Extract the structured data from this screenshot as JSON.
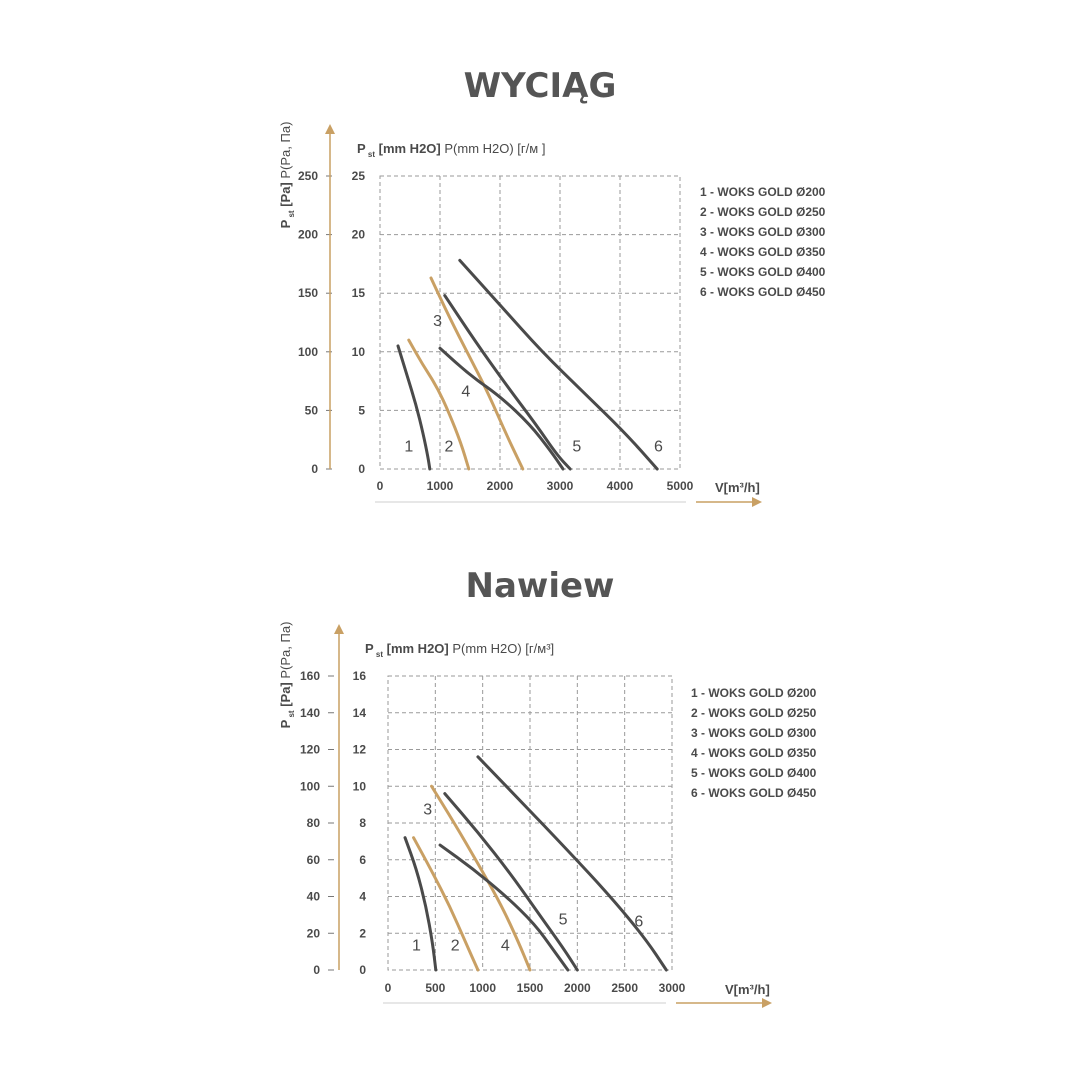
{
  "colors": {
    "dark": "#4a4a4a",
    "gold": "#c9a064",
    "arrow": "#c9a064",
    "grid": "#9a9a9a"
  },
  "chart_data": [
    {
      "type": "line",
      "title": "WYCIĄG",
      "ylabel_primary": "P",
      "ylabel_primary_sub": "st",
      "ylabel_primary_unit": "[Pa]",
      "ylabel_secondary": "P(Pa, Па)",
      "ylabel_top_prefix": "P",
      "ylabel_top_sub": "st",
      "ylabel_top_unit": "[mm H2O]",
      "ylabel_top_secondary": "P(mm H2O) [г/м ]",
      "xlabel": "V[m³/h]",
      "xlim": [
        0,
        5000
      ],
      "ylim_pa": [
        0,
        250
      ],
      "ylim_mm": [
        0,
        25
      ],
      "x_ticks": [
        "0",
        "1000",
        "2000",
        "3000",
        "4000",
        "5000"
      ],
      "y_ticks_pa": [
        "0",
        "50",
        "100",
        "150",
        "200",
        "250"
      ],
      "y_ticks_mm": [
        "0",
        "5",
        "10",
        "15",
        "20",
        "25"
      ],
      "grid": true,
      "legend_position": "right",
      "legend": [
        "1 - WOKS GOLD Ø200",
        "2 - WOKS GOLD Ø250",
        "3 - WOKS GOLD Ø300",
        "4 - WOKS GOLD Ø350",
        "5 - WOKS GOLD Ø400",
        "6 - WOKS GOLD Ø450"
      ],
      "series": [
        {
          "name": "1",
          "color": "dark",
          "x": [
            300,
            450,
            600,
            720,
            800,
            830
          ],
          "y": [
            105,
            80,
            55,
            30,
            10,
            0
          ]
        },
        {
          "name": "2",
          "color": "gold",
          "x": [
            480,
            700,
            950,
            1150,
            1350,
            1480
          ],
          "y": [
            110,
            90,
            70,
            48,
            22,
            0
          ]
        },
        {
          "name": "3",
          "color": "gold",
          "x": [
            850,
            1150,
            1500,
            1800,
            2100,
            2380
          ],
          "y": [
            163,
            130,
            95,
            65,
            30,
            0
          ]
        },
        {
          "name": "4",
          "color": "dark",
          "x": [
            1000,
            1500,
            2000,
            2500,
            2850,
            3050
          ],
          "y": [
            103,
            80,
            62,
            38,
            15,
            0
          ]
        },
        {
          "name": "5",
          "color": "dark",
          "x": [
            1080,
            1600,
            2100,
            2600,
            2950,
            3170
          ],
          "y": [
            148,
            108,
            72,
            38,
            12,
            0
          ]
        },
        {
          "name": "6",
          "color": "dark",
          "x": [
            1330,
            2000,
            2700,
            3400,
            4100,
            4620
          ],
          "y": [
            178,
            140,
            100,
            65,
            30,
            0
          ]
        }
      ],
      "curve_labels": [
        {
          "text": "1",
          "x": 480,
          "y": 20
        },
        {
          "text": "2",
          "x": 1150,
          "y": 20
        },
        {
          "text": "3",
          "x": 960,
          "y": 127
        },
        {
          "text": "4",
          "x": 1430,
          "y": 67
        },
        {
          "text": "5",
          "x": 3280,
          "y": 20
        },
        {
          "text": "6",
          "x": 4640,
          "y": 20
        }
      ]
    },
    {
      "type": "line",
      "title": "Nawiew",
      "ylabel_primary": "P",
      "ylabel_primary_sub": "st",
      "ylabel_primary_unit": "[Pa]",
      "ylabel_secondary": "P(Pa, Па)",
      "ylabel_top_prefix": "P",
      "ylabel_top_sub": "st",
      "ylabel_top_unit": "[mm H2O]",
      "ylabel_top_secondary": "P(mm H2O) [г/м³]",
      "xlabel": "V[m³/h]",
      "xlim": [
        0,
        3000
      ],
      "ylim_pa": [
        0,
        160
      ],
      "ylim_mm": [
        0,
        16
      ],
      "x_ticks": [
        "0",
        "500",
        "1000",
        "1500",
        "2000",
        "2500",
        "3000"
      ],
      "y_ticks_pa": [
        "0",
        "20",
        "40",
        "60",
        "80",
        "100",
        "120",
        "140",
        "160"
      ],
      "y_ticks_mm": [
        "0",
        "2",
        "4",
        "6",
        "8",
        "10",
        "12",
        "14",
        "16"
      ],
      "grid": true,
      "legend_position": "right",
      "legend": [
        "1 - WOKS GOLD Ø200",
        "2 - WOKS GOLD Ø250",
        "3 - WOKS GOLD Ø300",
        "4 - WOKS GOLD Ø350",
        "5 - WOKS GOLD Ø400",
        "6 - WOKS GOLD Ø450"
      ],
      "series": [
        {
          "name": "1",
          "color": "dark",
          "x": [
            180,
            300,
            400,
            470,
            505
          ],
          "y": [
            72,
            55,
            35,
            15,
            0
          ]
        },
        {
          "name": "2",
          "color": "gold",
          "x": [
            270,
            450,
            650,
            820,
            950
          ],
          "y": [
            72,
            55,
            35,
            15,
            0
          ]
        },
        {
          "name": "3",
          "color": "gold",
          "x": [
            460,
            700,
            950,
            1200,
            1380,
            1500
          ],
          "y": [
            100,
            80,
            58,
            35,
            15,
            0
          ]
        },
        {
          "name": "4",
          "color": "dark",
          "x": [
            550,
            900,
            1250,
            1550,
            1760,
            1900
          ],
          "y": [
            68,
            55,
            40,
            25,
            10,
            0
          ]
        },
        {
          "name": "5",
          "color": "dark",
          "x": [
            600,
            950,
            1300,
            1600,
            1850,
            2000
          ],
          "y": [
            96,
            75,
            52,
            30,
            12,
            0
          ]
        },
        {
          "name": "6",
          "color": "dark",
          "x": [
            950,
            1400,
            1900,
            2350,
            2720,
            2940
          ],
          "y": [
            116,
            92,
            65,
            40,
            17,
            0
          ]
        }
      ],
      "curve_labels": [
        {
          "text": "1",
          "x": 300,
          "y": 14
        },
        {
          "text": "2",
          "x": 710,
          "y": 14
        },
        {
          "text": "3",
          "x": 420,
          "y": 88
        },
        {
          "text": "4",
          "x": 1240,
          "y": 14
        },
        {
          "text": "5",
          "x": 1850,
          "y": 28
        },
        {
          "text": "6",
          "x": 2650,
          "y": 27
        }
      ]
    }
  ]
}
